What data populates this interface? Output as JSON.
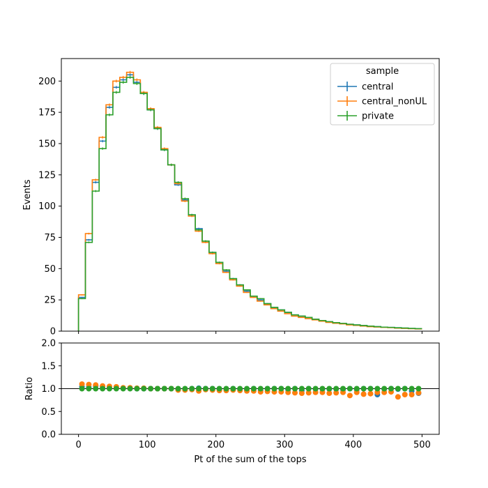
{
  "chart_data": [
    {
      "type": "step",
      "title": "",
      "xlabel": "",
      "ylabel": "Events",
      "xlim": [
        -25,
        525
      ],
      "ylim": [
        0,
        218
      ],
      "xticks": [
        0,
        100,
        200,
        300,
        400,
        500
      ],
      "yticks": [
        0,
        25,
        50,
        75,
        100,
        125,
        150,
        175,
        200
      ],
      "ytick_labels": [
        "0",
        "25",
        "50",
        "75",
        "100",
        "125",
        "150",
        "175",
        "200"
      ],
      "bin_edges": [
        0,
        10,
        20,
        30,
        40,
        50,
        60,
        70,
        80,
        90,
        100,
        110,
        120,
        130,
        140,
        150,
        160,
        170,
        180,
        190,
        200,
        210,
        220,
        230,
        240,
        250,
        260,
        270,
        280,
        290,
        300,
        310,
        320,
        330,
        340,
        350,
        360,
        370,
        380,
        390,
        400,
        410,
        420,
        430,
        440,
        450,
        460,
        470,
        480,
        490,
        500
      ],
      "legend": {
        "title": "sample",
        "position": "upper right"
      },
      "series": [
        {
          "name": "central",
          "color": "#1f77b4",
          "values": [
            27,
            73,
            119,
            152,
            179,
            195,
            201,
            205,
            199,
            190,
            177,
            162,
            145,
            133,
            117,
            105,
            93,
            82,
            72,
            63,
            55,
            48,
            42,
            37,
            32,
            28,
            25,
            22,
            19,
            17,
            15,
            13,
            12,
            11,
            9.5,
            8.5,
            7.5,
            6.8,
            6.2,
            5.5,
            5.0,
            4.5,
            4.0,
            3.6,
            3.2,
            3.0,
            2.7,
            2.4,
            2.1,
            1.9
          ]
        },
        {
          "name": "central_nonUL",
          "color": "#ff7f0e",
          "values": [
            29,
            78,
            121,
            155,
            181,
            200,
            203,
            207,
            201,
            191,
            178,
            163,
            146,
            133,
            118,
            104,
            92,
            80,
            71,
            62,
            54,
            47,
            41,
            36,
            31,
            27,
            24,
            21,
            18,
            16,
            14,
            12,
            11,
            10,
            9,
            8,
            7,
            6.3,
            5.8,
            5.0,
            4.6,
            4.1,
            3.6,
            3.3,
            3.0,
            2.8,
            2.4,
            2.2,
            2.0,
            1.8
          ]
        },
        {
          "name": "private",
          "color": "#2ca02c",
          "values": [
            26,
            71,
            112,
            146,
            173,
            191,
            199,
            203,
            198,
            190,
            177,
            162,
            145,
            133,
            119,
            106,
            93,
            81,
            72,
            63,
            55,
            49,
            42,
            37,
            33,
            28,
            26,
            22,
            19,
            17,
            15,
            13,
            12,
            11,
            9.5,
            8.5,
            7.6,
            6.8,
            6.2,
            5.5,
            5.0,
            4.5,
            4.0,
            3.6,
            3.2,
            3.0,
            2.7,
            2.5,
            2.2,
            2.0
          ]
        }
      ]
    },
    {
      "type": "scatter",
      "title": "",
      "xlabel": "Pt of the sum of the tops",
      "ylabel": "Ratio",
      "xlim": [
        -25,
        525
      ],
      "ylim": [
        0,
        2
      ],
      "xticks": [
        0,
        100,
        200,
        300,
        400,
        500
      ],
      "xtick_labels": [
        "0",
        "100",
        "200",
        "300",
        "400",
        "500"
      ],
      "yticks": [
        0,
        0.5,
        1.0,
        1.5,
        2.0
      ],
      "ytick_labels": [
        "0.0",
        "0.5",
        "1.0",
        "1.5",
        "2.0"
      ],
      "reference_line": 1.0,
      "x": [
        5,
        15,
        25,
        35,
        45,
        55,
        65,
        75,
        85,
        95,
        105,
        115,
        125,
        135,
        145,
        155,
        165,
        175,
        185,
        195,
        205,
        215,
        225,
        235,
        245,
        255,
        265,
        275,
        285,
        295,
        305,
        315,
        325,
        335,
        345,
        355,
        365,
        375,
        385,
        395,
        405,
        415,
        425,
        435,
        445,
        455,
        465,
        475,
        485,
        495
      ],
      "series": [
        {
          "name": "central",
          "color": "#1f77b4",
          "values": [
            1.04,
            1.03,
            1.06,
            1.04,
            1.03,
            1.02,
            1.01,
            1.01,
            1.0,
            1.0,
            1.0,
            1.0,
            1.0,
            1.0,
            0.98,
            0.99,
            1.0,
            1.01,
            1.0,
            1.0,
            0.99,
            0.98,
            1.0,
            0.99,
            0.97,
            1.0,
            0.96,
            1.0,
            1.0,
            1.0,
            0.98,
            1.0,
            0.96,
            1.0,
            0.99,
            0.99,
            0.99,
            0.99,
            0.98,
            1.0,
            0.98,
            1.0,
            1.0,
            0.87,
            0.99,
            1.0,
            0.99,
            1.0,
            0.95,
            0.9
          ]
        },
        {
          "name": "central_nonUL",
          "color": "#ff7f0e",
          "values": [
            1.1,
            1.09,
            1.08,
            1.06,
            1.05,
            1.04,
            1.02,
            1.02,
            1.01,
            1.01,
            1.0,
            1.0,
            1.0,
            1.0,
            0.97,
            0.97,
            0.98,
            0.95,
            0.98,
            0.97,
            0.96,
            0.96,
            0.97,
            0.96,
            0.95,
            0.95,
            0.93,
            0.94,
            0.93,
            0.93,
            0.92,
            0.91,
            0.9,
            0.91,
            0.92,
            0.92,
            0.9,
            0.91,
            0.92,
            0.85,
            0.92,
            0.88,
            0.89,
            0.92,
            0.92,
            0.93,
            0.82,
            0.87,
            0.87,
            0.91
          ]
        },
        {
          "name": "private",
          "color": "#2ca02c",
          "values": [
            1.0,
            1.0,
            1.0,
            1.0,
            1.0,
            1.0,
            1.0,
            1.0,
            1.0,
            1.0,
            1.0,
            1.0,
            1.0,
            1.0,
            1.0,
            1.0,
            1.0,
            1.0,
            1.0,
            1.0,
            1.0,
            1.0,
            1.0,
            1.0,
            1.0,
            1.0,
            1.0,
            1.0,
            1.0,
            1.0,
            1.0,
            1.0,
            1.0,
            1.0,
            1.0,
            1.0,
            1.0,
            1.0,
            1.0,
            1.0,
            1.0,
            1.0,
            1.0,
            1.0,
            1.0,
            1.0,
            1.0,
            1.0,
            1.0,
            1.0
          ]
        }
      ]
    }
  ]
}
